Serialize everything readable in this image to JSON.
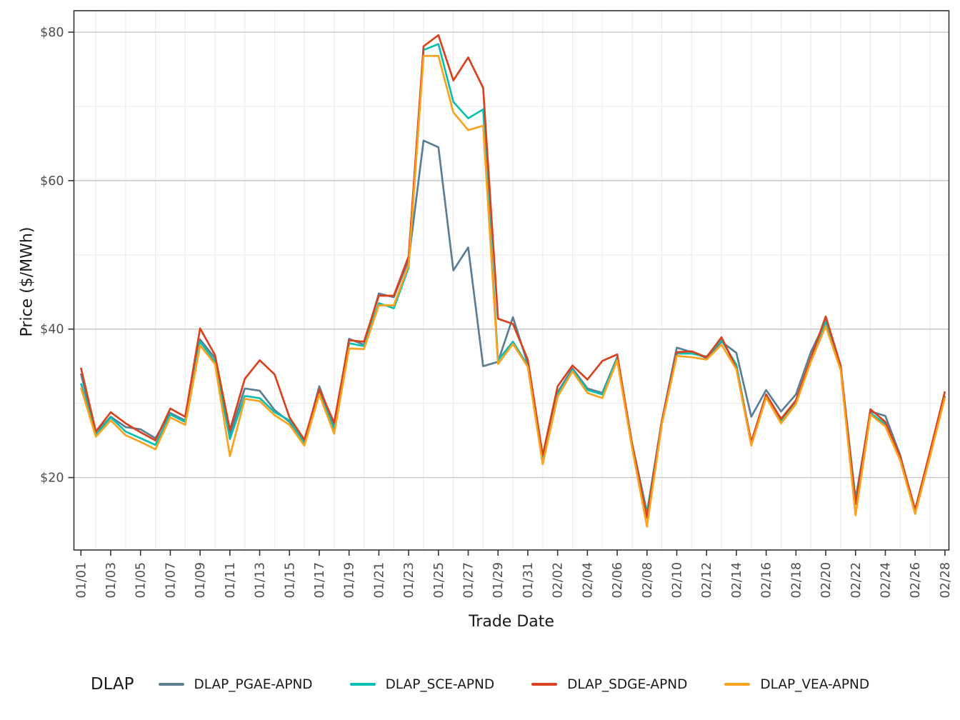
{
  "chart_data": {
    "type": "line",
    "title": "",
    "xlabel": "Trade Date",
    "ylabel": "Price ($/MWh)",
    "legend_title": "DLAP",
    "legend_position": "bottom",
    "grid": "horizontal-major-and-minor, vertical-minor-only",
    "ylim": [
      10.2,
      82.9
    ],
    "yticks": [
      20,
      40,
      60,
      80
    ],
    "ytick_labels": [
      "$20",
      "$40",
      "$60",
      "$80"
    ],
    "minor_yticks": [
      30,
      50,
      70
    ],
    "x_dates": [
      "01/01",
      "01/02",
      "01/03",
      "01/04",
      "01/05",
      "01/06",
      "01/07",
      "01/08",
      "01/09",
      "01/10",
      "01/11",
      "01/12",
      "01/13",
      "01/14",
      "01/15",
      "01/16",
      "01/17",
      "01/18",
      "01/19",
      "01/20",
      "01/21",
      "01/22",
      "01/23",
      "01/24",
      "01/25",
      "01/26",
      "01/27",
      "01/28",
      "01/29",
      "01/30",
      "01/31",
      "02/01",
      "02/02",
      "02/03",
      "02/04",
      "02/05",
      "02/06",
      "02/07",
      "02/08",
      "02/09",
      "02/10",
      "02/11",
      "02/12",
      "02/13",
      "02/14",
      "02/15",
      "02/16",
      "02/17",
      "02/18",
      "02/19",
      "02/20",
      "02/21",
      "02/22",
      "02/23",
      "02/24",
      "02/25",
      "02/26",
      "02/27",
      "02/28"
    ],
    "x_tick_labels": [
      "01/01",
      "01/03",
      "01/05",
      "01/07",
      "01/09",
      "01/11",
      "01/13",
      "01/15",
      "01/17",
      "01/19",
      "01/21",
      "01/23",
      "01/25",
      "01/27",
      "01/29",
      "01/31",
      "02/02",
      "02/04",
      "02/06",
      "02/08",
      "02/10",
      "02/12",
      "02/14",
      "02/16",
      "02/18",
      "02/20",
      "02/22",
      "02/24",
      "02/26",
      "02/28"
    ],
    "series": [
      {
        "name": "DLAP_PGAE-APND",
        "color": "#5b7e95",
        "values": [
          34.0,
          26.0,
          28.2,
          26.8,
          26.5,
          25.3,
          28.7,
          27.7,
          38.6,
          36.1,
          25.8,
          32.0,
          31.7,
          29.1,
          27.5,
          24.8,
          32.3,
          26.9,
          38.7,
          37.9,
          44.8,
          44.3,
          49.3,
          65.4,
          64.5,
          47.9,
          51.0,
          35.0,
          35.6,
          41.6,
          35.3,
          22.6,
          31.5,
          34.7,
          32.0,
          31.4,
          36.2,
          24.6,
          15.3,
          27.7,
          37.5,
          36.9,
          36.1,
          38.3,
          36.8,
          28.2,
          31.8,
          28.9,
          31.2,
          36.9,
          41.1,
          34.9,
          17.1,
          28.9,
          28.3,
          23.0,
          15.4,
          23.1,
          31.0
        ]
      },
      {
        "name": "DLAP_SCE-APND",
        "color": "#0ABFB0",
        "values": [
          32.7,
          25.8,
          28.1,
          26.2,
          25.3,
          24.4,
          28.5,
          27.5,
          38.3,
          35.6,
          25.2,
          31.0,
          30.7,
          28.8,
          27.7,
          24.7,
          31.5,
          26.5,
          38.1,
          37.7,
          43.5,
          42.8,
          48.3,
          77.6,
          78.4,
          70.6,
          68.4,
          69.6,
          35.8,
          38.3,
          35.1,
          22.4,
          31.2,
          34.5,
          31.8,
          31.2,
          36.0,
          24.3,
          15.0,
          27.4,
          36.7,
          36.7,
          36.3,
          38.5,
          35.2,
          24.6,
          31.0,
          27.7,
          30.3,
          35.9,
          41.0,
          34.6,
          16.7,
          28.7,
          27.2,
          22.5,
          15.2,
          22.9,
          30.9
        ]
      },
      {
        "name": "DLAP_SDGE-APND",
        "color": "#D8431F",
        "values": [
          34.8,
          26.2,
          28.8,
          27.3,
          26.1,
          25.0,
          29.3,
          28.2,
          40.1,
          36.5,
          26.4,
          33.3,
          35.8,
          33.9,
          28.1,
          25.1,
          31.9,
          27.4,
          38.5,
          38.3,
          44.5,
          44.5,
          49.8,
          78.1,
          79.6,
          73.5,
          76.6,
          72.5,
          41.4,
          40.7,
          35.9,
          23.0,
          32.3,
          35.1,
          33.2,
          35.7,
          36.6,
          24.5,
          14.6,
          27.6,
          36.9,
          37.0,
          36.2,
          38.9,
          34.7,
          24.8,
          31.2,
          27.9,
          30.4,
          36.1,
          41.7,
          35.1,
          16.4,
          29.2,
          27.5,
          22.8,
          15.7,
          23.5,
          31.6
        ]
      },
      {
        "name": "DLAP_VEA-APND",
        "color": "#F9A21D",
        "values": [
          32.1,
          25.5,
          27.7,
          25.7,
          24.8,
          23.8,
          28.1,
          27.1,
          37.8,
          35.3,
          22.9,
          30.6,
          30.3,
          28.4,
          27.1,
          24.3,
          31.2,
          25.9,
          37.4,
          37.3,
          43.2,
          43.2,
          48.6,
          76.8,
          76.8,
          69.2,
          66.8,
          67.4,
          35.3,
          38.0,
          34.9,
          21.8,
          30.9,
          34.3,
          31.4,
          30.7,
          35.8,
          24.0,
          13.4,
          27.2,
          36.4,
          36.2,
          35.9,
          37.9,
          34.6,
          24.3,
          30.8,
          27.3,
          29.9,
          35.6,
          40.4,
          34.5,
          14.9,
          28.5,
          26.9,
          22.3,
          15.1,
          22.8,
          30.8
        ]
      }
    ]
  },
  "style_colors": {
    "major_grid": "#c8c8c8",
    "minor_grid": "#ececec",
    "panel_border": "#333333",
    "tick_text": "#4d4d4d",
    "axis_title_text": "#1a1a1a"
  }
}
